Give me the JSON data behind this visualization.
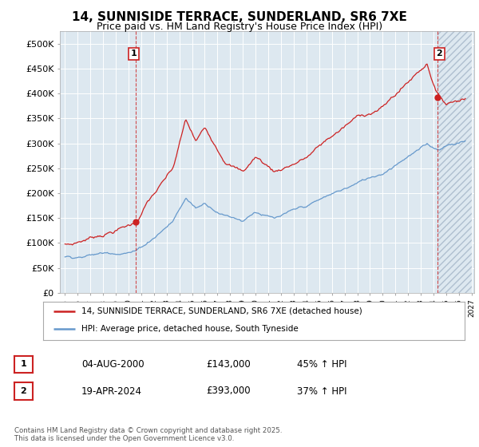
{
  "title": "14, SUNNISIDE TERRACE, SUNDERLAND, SR6 7XE",
  "subtitle": "Price paid vs. HM Land Registry's House Price Index (HPI)",
  "ylim": [
    0,
    525000
  ],
  "yticks": [
    0,
    50000,
    100000,
    150000,
    200000,
    250000,
    300000,
    350000,
    400000,
    450000,
    500000
  ],
  "ytick_labels": [
    "£0",
    "£50K",
    "£100K",
    "£150K",
    "£200K",
    "£250K",
    "£300K",
    "£350K",
    "£400K",
    "£450K",
    "£500K"
  ],
  "red_color": "#cc2222",
  "blue_color": "#6699cc",
  "chart_bg": "#dde8f0",
  "background_color": "#ffffff",
  "grid_color": "#ffffff",
  "purchase1_year": 2000.58,
  "purchase1_price": 143000,
  "purchase2_year": 2024.3,
  "purchase2_price": 393000,
  "legend_label_red": "14, SUNNISIDE TERRACE, SUNDERLAND, SR6 7XE (detached house)",
  "legend_label_blue": "HPI: Average price, detached house, South Tyneside",
  "table_row1": [
    "1",
    "04-AUG-2000",
    "£143,000",
    "45% ↑ HPI"
  ],
  "table_row2": [
    "2",
    "19-APR-2024",
    "£393,000",
    "37% ↑ HPI"
  ],
  "footer": "Contains HM Land Registry data © Crown copyright and database right 2025.\nThis data is licensed under the Open Government Licence v3.0.",
  "title_fontsize": 11,
  "subtitle_fontsize": 9,
  "tick_fontsize": 8
}
